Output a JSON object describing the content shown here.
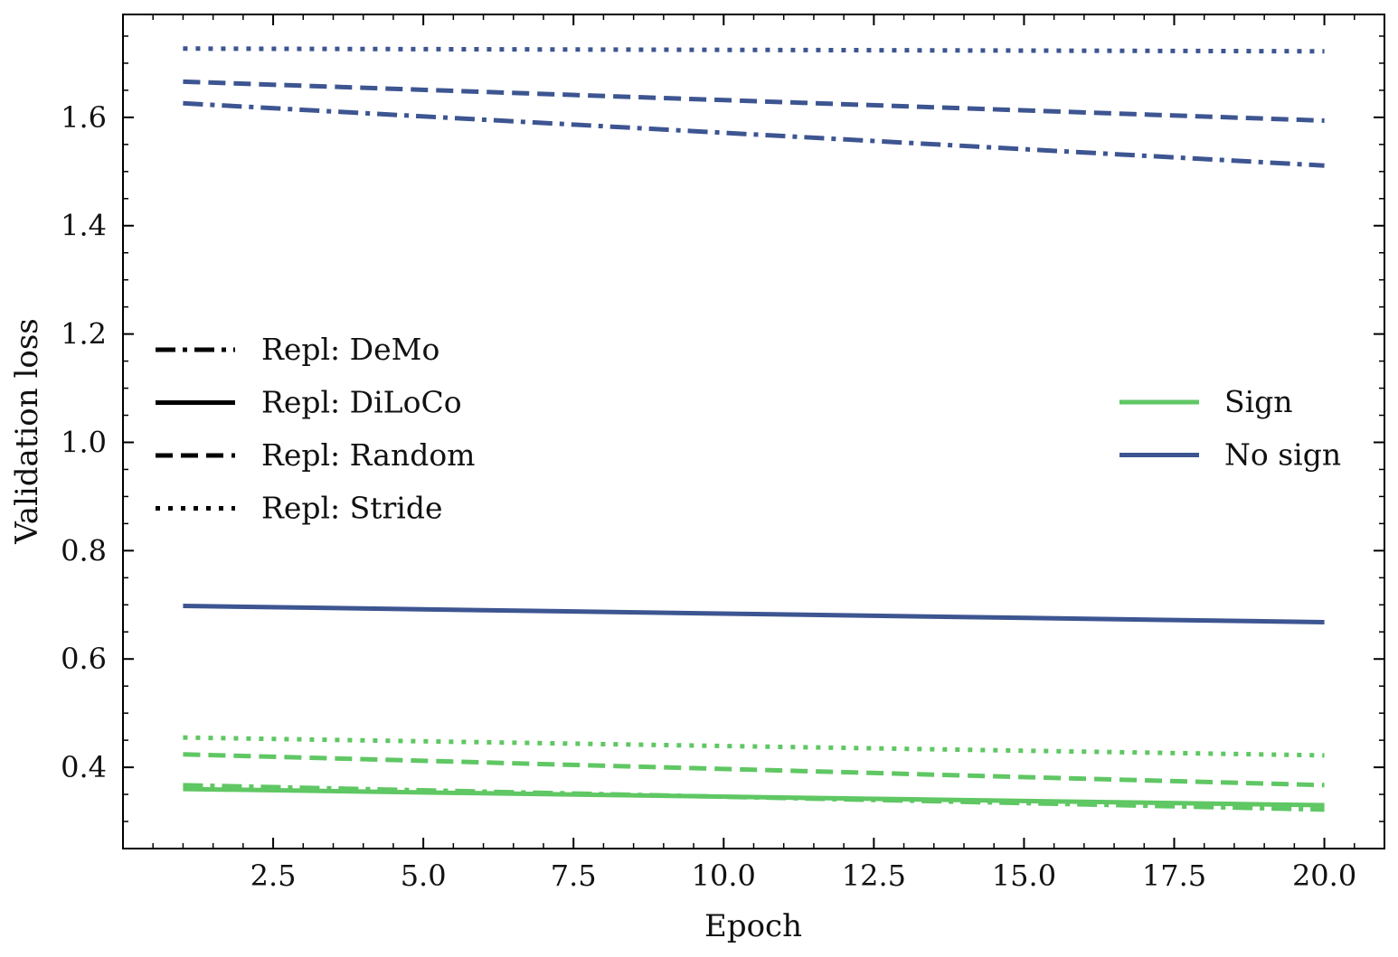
{
  "chart_data": {
    "type": "line",
    "title": "",
    "xlabel": "Epoch",
    "ylabel": "Validation loss",
    "xlim": [
      0.0,
      21.0
    ],
    "ylim": [
      0.25,
      1.79
    ],
    "xticks": [
      2.5,
      5.0,
      7.5,
      10.0,
      12.5,
      15.0,
      17.5,
      20.0
    ],
    "xtick_labels": [
      "2.5",
      "5.0",
      "7.5",
      "10.0",
      "12.5",
      "15.0",
      "17.5",
      "20.0"
    ],
    "yticks": [
      0.4,
      0.6,
      0.8,
      1.0,
      1.2,
      1.4,
      1.6
    ],
    "ytick_labels": [
      "0.4",
      "0.6",
      "0.8",
      "1.0",
      "1.2",
      "1.4",
      "1.6"
    ],
    "x": [
      1,
      20
    ],
    "colors": {
      "sign": "#5fc763",
      "no_sign": "#3d5591"
    },
    "series": [
      {
        "name": "No sign / Repl: Stride",
        "group": "no_sign",
        "style": "dotted",
        "values": [
          1.727,
          1.722
        ]
      },
      {
        "name": "No sign / Repl: Random",
        "group": "no_sign",
        "style": "dashed",
        "values": [
          1.666,
          1.594
        ]
      },
      {
        "name": "No sign / Repl: DeMo",
        "group": "no_sign",
        "style": "dashdot",
        "values": [
          1.626,
          1.511
        ]
      },
      {
        "name": "No sign / Repl: DiLoCo",
        "group": "no_sign",
        "style": "solid",
        "values": [
          0.698,
          0.668
        ]
      },
      {
        "name": "Sign / Repl: Stride",
        "group": "sign",
        "style": "dotted",
        "values": [
          0.455,
          0.422
        ]
      },
      {
        "name": "Sign / Repl: Random",
        "group": "sign",
        "style": "dashed",
        "values": [
          0.424,
          0.367
        ]
      },
      {
        "name": "Sign / Repl: DeMo",
        "group": "sign",
        "style": "dashdot",
        "values": [
          0.367,
          0.322
        ]
      },
      {
        "name": "Sign / Repl: DiLoCo",
        "group": "sign",
        "style": "solid",
        "values": [
          0.36,
          0.33
        ]
      }
    ],
    "legend_style": {
      "position": "center-left",
      "entries": [
        {
          "label": "Repl: DeMo",
          "style": "dashdot"
        },
        {
          "label": "Repl: DiLoCo",
          "style": "solid"
        },
        {
          "label": "Repl: Random",
          "style": "dashed"
        },
        {
          "label": "Repl: Stride",
          "style": "dotted"
        }
      ]
    },
    "legend_color": {
      "position": "center-right",
      "entries": [
        {
          "label": "Sign",
          "group": "sign"
        },
        {
          "label": "No sign",
          "group": "no_sign"
        }
      ]
    }
  }
}
